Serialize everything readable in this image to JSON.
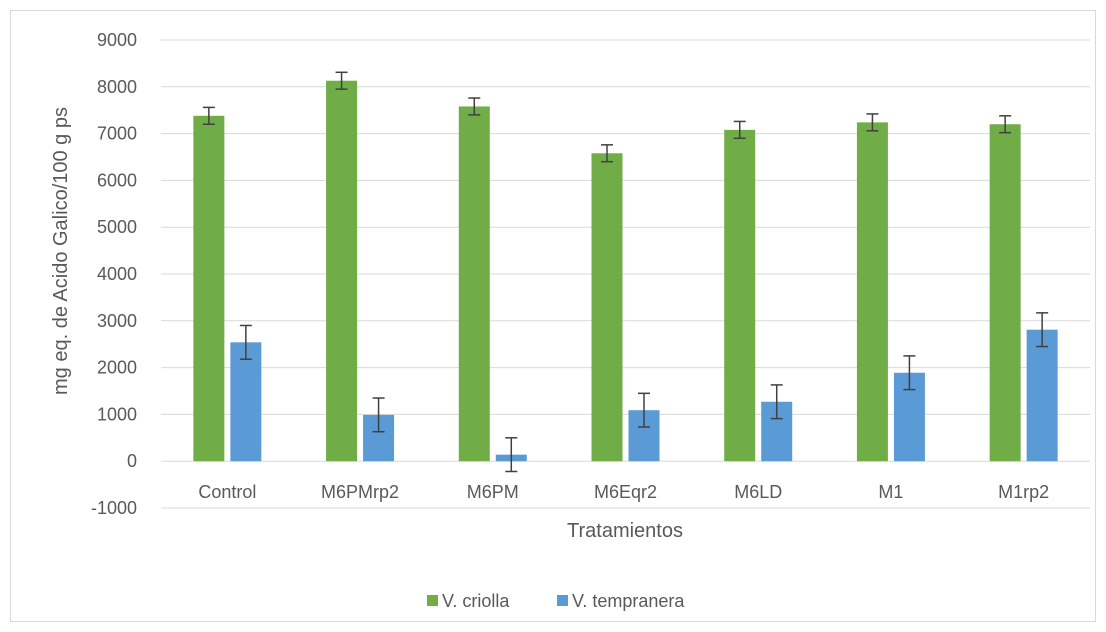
{
  "chart_data": {
    "type": "bar",
    "title": "",
    "xlabel": "Tratamientos",
    "ylabel": "mg eq. de Acido Galico/100 g ps",
    "ylim": [
      -1000,
      9000
    ],
    "yticks": [
      9000,
      8000,
      7000,
      6000,
      5000,
      4000,
      3000,
      2000,
      1000,
      0,
      -1000
    ],
    "grid": true,
    "legend_position": "bottom",
    "categories": [
      "Control",
      "M6PMrp2",
      "M6PM",
      "M6Eqr2",
      "M6LD",
      "M1",
      "M1rp2"
    ],
    "series": [
      {
        "name": "V. criolla",
        "color": "#70ad47",
        "values": [
          7380,
          8130,
          7580,
          6580,
          7080,
          7240,
          7200
        ],
        "error": [
          180,
          180,
          180,
          180,
          180,
          180,
          180
        ]
      },
      {
        "name": "V. tempranera",
        "color": "#5b9bd5",
        "values": [
          2540,
          990,
          140,
          1090,
          1270,
          1890,
          2810
        ],
        "error": [
          360,
          360,
          360,
          360,
          360,
          360,
          360
        ]
      }
    ]
  }
}
